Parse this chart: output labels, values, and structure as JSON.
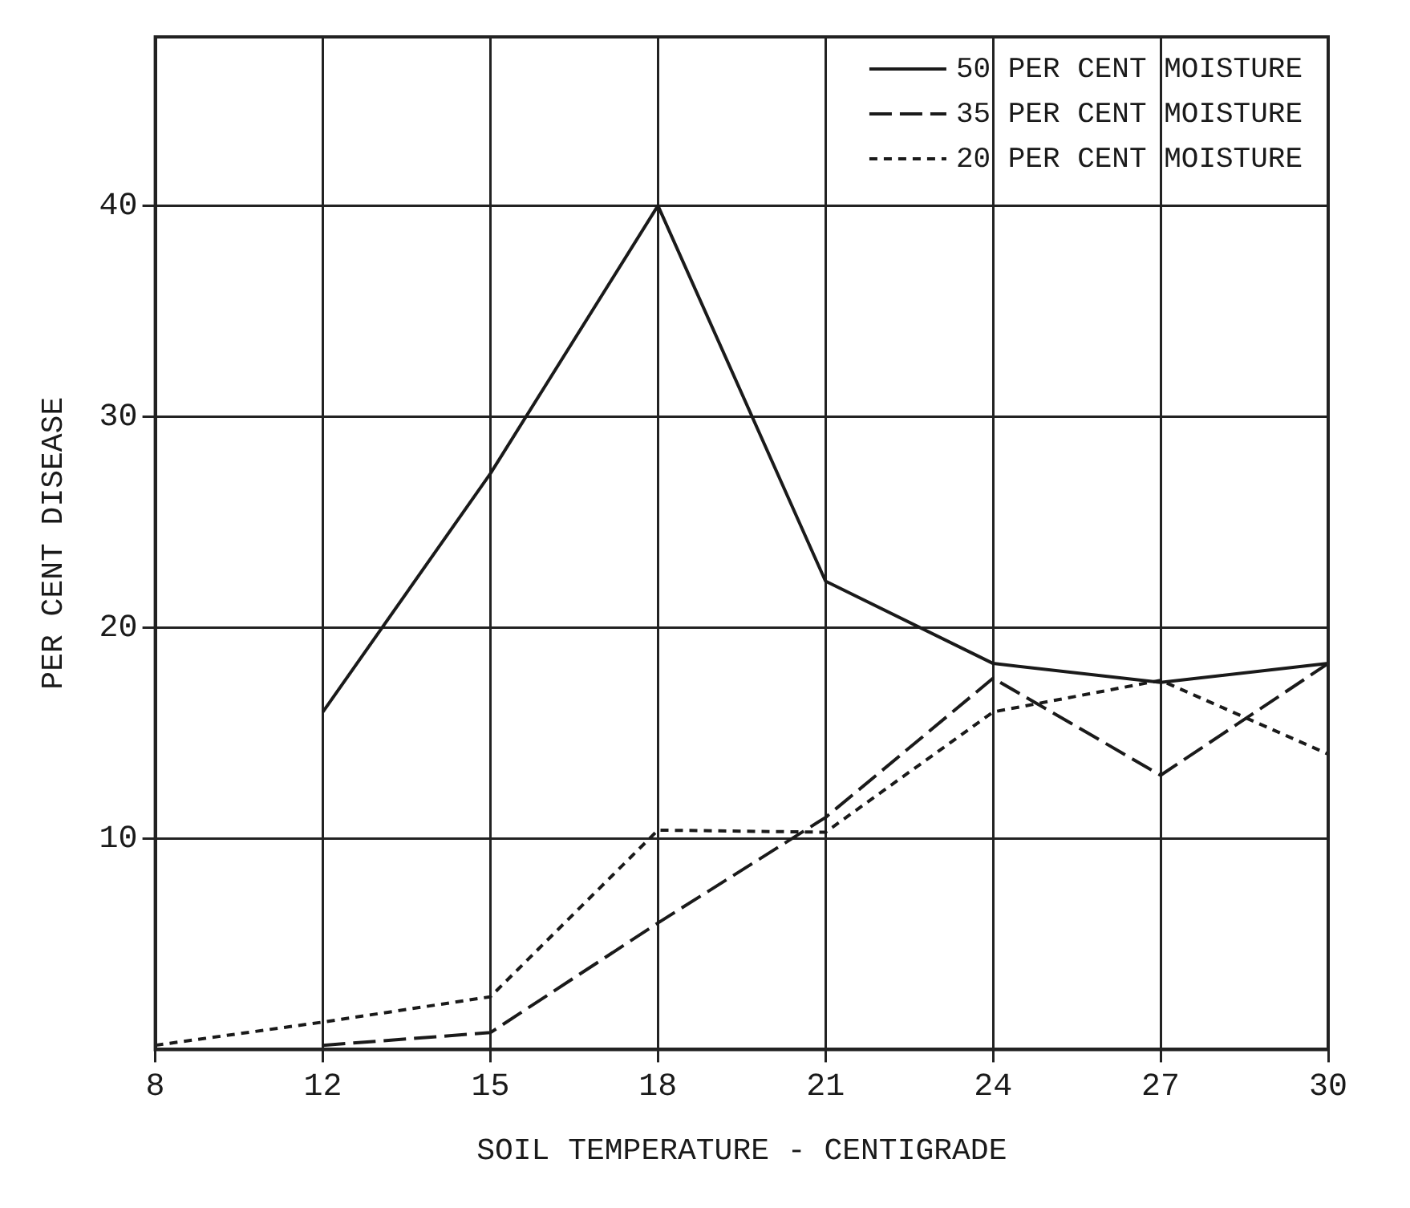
{
  "chart_data": {
    "type": "line",
    "xlabel": "SOIL TEMPERATURE - CENTIGRADE",
    "ylabel": "PER CENT DISEASE",
    "categories": [
      "8",
      "12",
      "15",
      "18",
      "21",
      "24",
      "27",
      "30"
    ],
    "series": [
      {
        "name": "50 PER CENT MOISTURE",
        "color": "#1a1a1a",
        "line_style": "solid",
        "values": [
          null,
          16,
          27.3,
          40,
          22.2,
          18.3,
          17.4,
          18.3
        ]
      },
      {
        "name": "35 PER CENT MOISTURE",
        "color": "#1a1a1a",
        "line_style": "dashed",
        "values": [
          null,
          0.2,
          0.8,
          6,
          11,
          17.6,
          13,
          18.3
        ]
      },
      {
        "name": "20 PER CENT MOISTURE",
        "color": "#1a1a1a",
        "line_style": "dotted",
        "values": [
          0.2,
          1.3,
          2.5,
          10.4,
          10.3,
          16,
          17.5,
          14
        ]
      }
    ],
    "ylim": [
      0,
      48
    ],
    "yticks": [
      10,
      20,
      30,
      40
    ],
    "grid": true,
    "legend": "top right",
    "marker": "none"
  }
}
